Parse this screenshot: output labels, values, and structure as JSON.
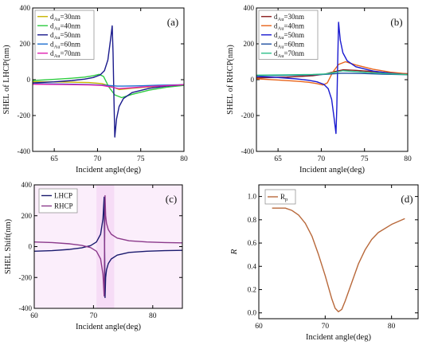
{
  "chart_data": [
    {
      "type": "line",
      "panel_label": "(a)",
      "xlabel": "Incident angle(deg)",
      "ylabel": "SHEL of LHCP(nm)",
      "xlim": [
        62.5,
        80
      ],
      "ylim": [
        -400,
        400
      ],
      "xticks": [
        65,
        70,
        75,
        80
      ],
      "yticks": [
        -400,
        -200,
        0,
        200,
        400
      ],
      "legend_position": "top-left",
      "series": [
        {
          "name": "d",
          "sub": "Au",
          "suffix": "=30nm",
          "color": "#c8b400",
          "x": [
            62.5,
            66,
            69,
            70.5,
            71.5,
            72.5,
            74,
            76,
            78,
            80
          ],
          "y": [
            -12,
            -13,
            -16,
            -22,
            -36,
            -55,
            -48,
            -40,
            -33,
            -28
          ]
        },
        {
          "name": "d",
          "sub": "Au",
          "suffix": "=40nm",
          "color": "#2ecc40",
          "x": [
            62.5,
            65,
            67,
            68.5,
            69.5,
            70.2,
            70.7,
            71.3,
            72,
            72.8,
            74,
            76,
            78,
            80
          ],
          "y": [
            -5,
            2,
            8,
            14,
            22,
            30,
            18,
            -40,
            -85,
            -100,
            -82,
            -58,
            -42,
            -32
          ]
        },
        {
          "name": "d",
          "sub": "Au",
          "suffix": "=50nm",
          "color": "#1a1a8c",
          "x": [
            62.5,
            65,
            67,
            68.5,
            69.5,
            70.3,
            70.8,
            71.2,
            71.5,
            71.7,
            71.8,
            71.9,
            72.0,
            72.2,
            72.5,
            73,
            74,
            76,
            78,
            80
          ],
          "y": [
            -18,
            -12,
            -5,
            3,
            12,
            26,
            50,
            110,
            220,
            300,
            150,
            -100,
            -320,
            -220,
            -150,
            -105,
            -72,
            -48,
            -36,
            -28
          ]
        },
        {
          "name": "d",
          "sub": "Au",
          "suffix": "=60nm",
          "color": "#1f6fd0",
          "x": [
            62.5,
            66,
            69,
            70.5,
            71.5,
            72.3,
            73,
            75,
            77,
            80
          ],
          "y": [
            -22,
            -24,
            -27,
            -30,
            -33,
            -36,
            -36,
            -34,
            -31,
            -28
          ]
        },
        {
          "name": "d",
          "sub": "Au",
          "suffix": "=70nm",
          "color": "#e020b0",
          "x": [
            62.5,
            66,
            69,
            70.5,
            71.5,
            72.5,
            74,
            76,
            78,
            80
          ],
          "y": [
            -25,
            -27,
            -29,
            -32,
            -40,
            -50,
            -45,
            -38,
            -33,
            -28
          ]
        }
      ]
    },
    {
      "type": "line",
      "panel_label": "(b)",
      "xlabel": "Incident angle(deg)",
      "ylabel": "SHEL of RHCP(nm)",
      "xlim": [
        62.5,
        80
      ],
      "ylim": [
        -400,
        400
      ],
      "xticks": [
        65,
        70,
        75,
        80
      ],
      "yticks": [
        -400,
        -200,
        0,
        200,
        400
      ],
      "legend_position": "top-left",
      "series": [
        {
          "name": "d",
          "sub": "Au",
          "suffix": "=30nm",
          "color": "#8b1a1a",
          "x": [
            62.5,
            66,
            69,
            70.5,
            71.5,
            72.5,
            74,
            76,
            78,
            80
          ],
          "y": [
            10,
            14,
            22,
            32,
            45,
            55,
            52,
            45,
            38,
            33
          ]
        },
        {
          "name": "d",
          "sub": "Au",
          "suffix": "=40nm",
          "color": "#e8641a",
          "x": [
            62.5,
            65,
            67,
            68.5,
            69.5,
            70.2,
            70.7,
            71.3,
            72,
            72.8,
            74,
            76,
            78,
            80
          ],
          "y": [
            5,
            -2,
            -8,
            -14,
            -22,
            -30,
            -18,
            40,
            85,
            100,
            82,
            58,
            42,
            32
          ]
        },
        {
          "name": "d",
          "sub": "Au",
          "suffix": "=50nm",
          "color": "#1a1ad0",
          "x": [
            62.5,
            65,
            67,
            68.5,
            69.5,
            70.3,
            70.8,
            71.2,
            71.5,
            71.7,
            71.8,
            71.9,
            72.0,
            72.2,
            72.5,
            73,
            74,
            76,
            78,
            80
          ],
          "y": [
            18,
            12,
            5,
            -3,
            -12,
            -26,
            -50,
            -110,
            -220,
            -300,
            -150,
            100,
            320,
            220,
            150,
            105,
            72,
            48,
            36,
            28
          ]
        },
        {
          "name": "d",
          "sub": "Au",
          "suffix": "=60nm",
          "color": "#1f4fa0",
          "x": [
            62.5,
            66,
            69,
            70.5,
            71.5,
            72.3,
            73,
            75,
            77,
            80
          ],
          "y": [
            22,
            24,
            27,
            30,
            33,
            36,
            36,
            34,
            31,
            28
          ]
        },
        {
          "name": "d",
          "sub": "Au",
          "suffix": "=70nm",
          "color": "#2ec08a",
          "x": [
            62.5,
            66,
            69,
            70.5,
            71.5,
            72.5,
            74,
            76,
            78,
            80
          ],
          "y": [
            25,
            27,
            29,
            32,
            40,
            50,
            45,
            38,
            33,
            28
          ]
        }
      ]
    },
    {
      "type": "line",
      "panel_label": "(c)",
      "xlabel": "Incident angle(deg)",
      "ylabel": "SHEL Shift(nm)",
      "xlim": [
        60,
        85
      ],
      "ylim": [
        -400,
        400
      ],
      "xticks": [
        60,
        70,
        80
      ],
      "yticks": [
        -400,
        -200,
        0,
        200,
        400
      ],
      "legend_position": "top-left",
      "series": [
        {
          "name": "LHCP",
          "color": "#1a1a6e",
          "x": [
            60,
            63,
            66,
            68,
            69.5,
            70.5,
            71.2,
            71.6,
            71.8,
            71.95,
            72.05,
            72.2,
            72.5,
            73,
            74,
            76,
            79,
            82,
            85
          ],
          "y": [
            -30,
            -26,
            -18,
            -8,
            6,
            30,
            80,
            180,
            320,
            -330,
            -200,
            -150,
            -110,
            -80,
            -55,
            -38,
            -30,
            -26,
            -24
          ]
        },
        {
          "name": "RHCP",
          "color": "#8b3a8b",
          "x": [
            60,
            63,
            66,
            68,
            69.5,
            70.5,
            71.2,
            71.6,
            71.8,
            71.95,
            72.05,
            72.2,
            72.5,
            73,
            74,
            76,
            79,
            82,
            85
          ],
          "y": [
            30,
            26,
            18,
            8,
            -6,
            -30,
            -80,
            -180,
            -320,
            330,
            200,
            150,
            110,
            80,
            55,
            38,
            30,
            26,
            24
          ]
        }
      ]
    },
    {
      "type": "line",
      "panel_label": "(d)",
      "xlabel": "Incident angle(deg)",
      "ylabel": "R",
      "xlim": [
        60,
        84
      ],
      "ylim": [
        -0.05,
        1.1
      ],
      "xticks": [
        60,
        70,
        80
      ],
      "yticks": [
        0.0,
        0.2,
        0.4,
        0.6,
        0.8,
        1.0
      ],
      "legend_position": "top-left",
      "series": [
        {
          "name": "R",
          "sub": "p",
          "color": "#b8683a",
          "x": [
            62,
            64,
            65,
            66,
            67,
            68,
            69,
            70,
            71,
            71.5,
            72,
            72.5,
            73,
            74,
            75,
            76,
            77,
            78,
            80,
            82
          ],
          "y": [
            0.9,
            0.9,
            0.88,
            0.84,
            0.77,
            0.66,
            0.5,
            0.32,
            0.12,
            0.04,
            0.01,
            0.03,
            0.1,
            0.26,
            0.42,
            0.54,
            0.63,
            0.69,
            0.76,
            0.81
          ]
        }
      ]
    }
  ]
}
